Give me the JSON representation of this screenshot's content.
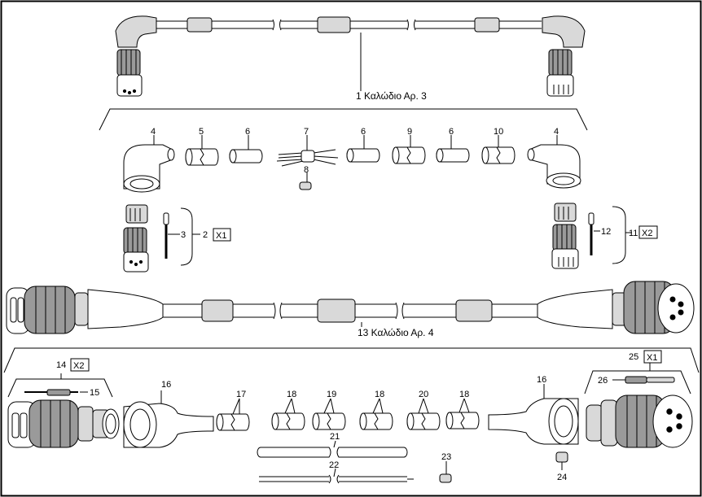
{
  "captions": {
    "cable_3": "1  Καλώδιο Αρ. 3",
    "cable_4": "13  Καλώδιο Αρ. 4"
  },
  "callouts": {
    "c2": "2",
    "c3": "3",
    "c4a": "4",
    "c4b": "4",
    "c5": "5",
    "c6a": "6",
    "c6b": "6",
    "c6c": "6",
    "c7": "7",
    "c8": "8",
    "c9": "9",
    "c10": "10",
    "c11": "11",
    "c12": "12",
    "c14": "14",
    "c15": "15",
    "c16a": "16",
    "c16b": "16",
    "c17": "17",
    "c18a": "18",
    "c18b": "18",
    "c18c": "18",
    "c19": "19",
    "c20": "20",
    "c21": "21",
    "c22": "22",
    "c23": "23",
    "c24": "24",
    "c25": "25",
    "c26": "26"
  },
  "multipliers": {
    "x1_top": "X1",
    "x2_top": "X2",
    "x2_bottom": "X2",
    "x1_bottom": "X1"
  }
}
